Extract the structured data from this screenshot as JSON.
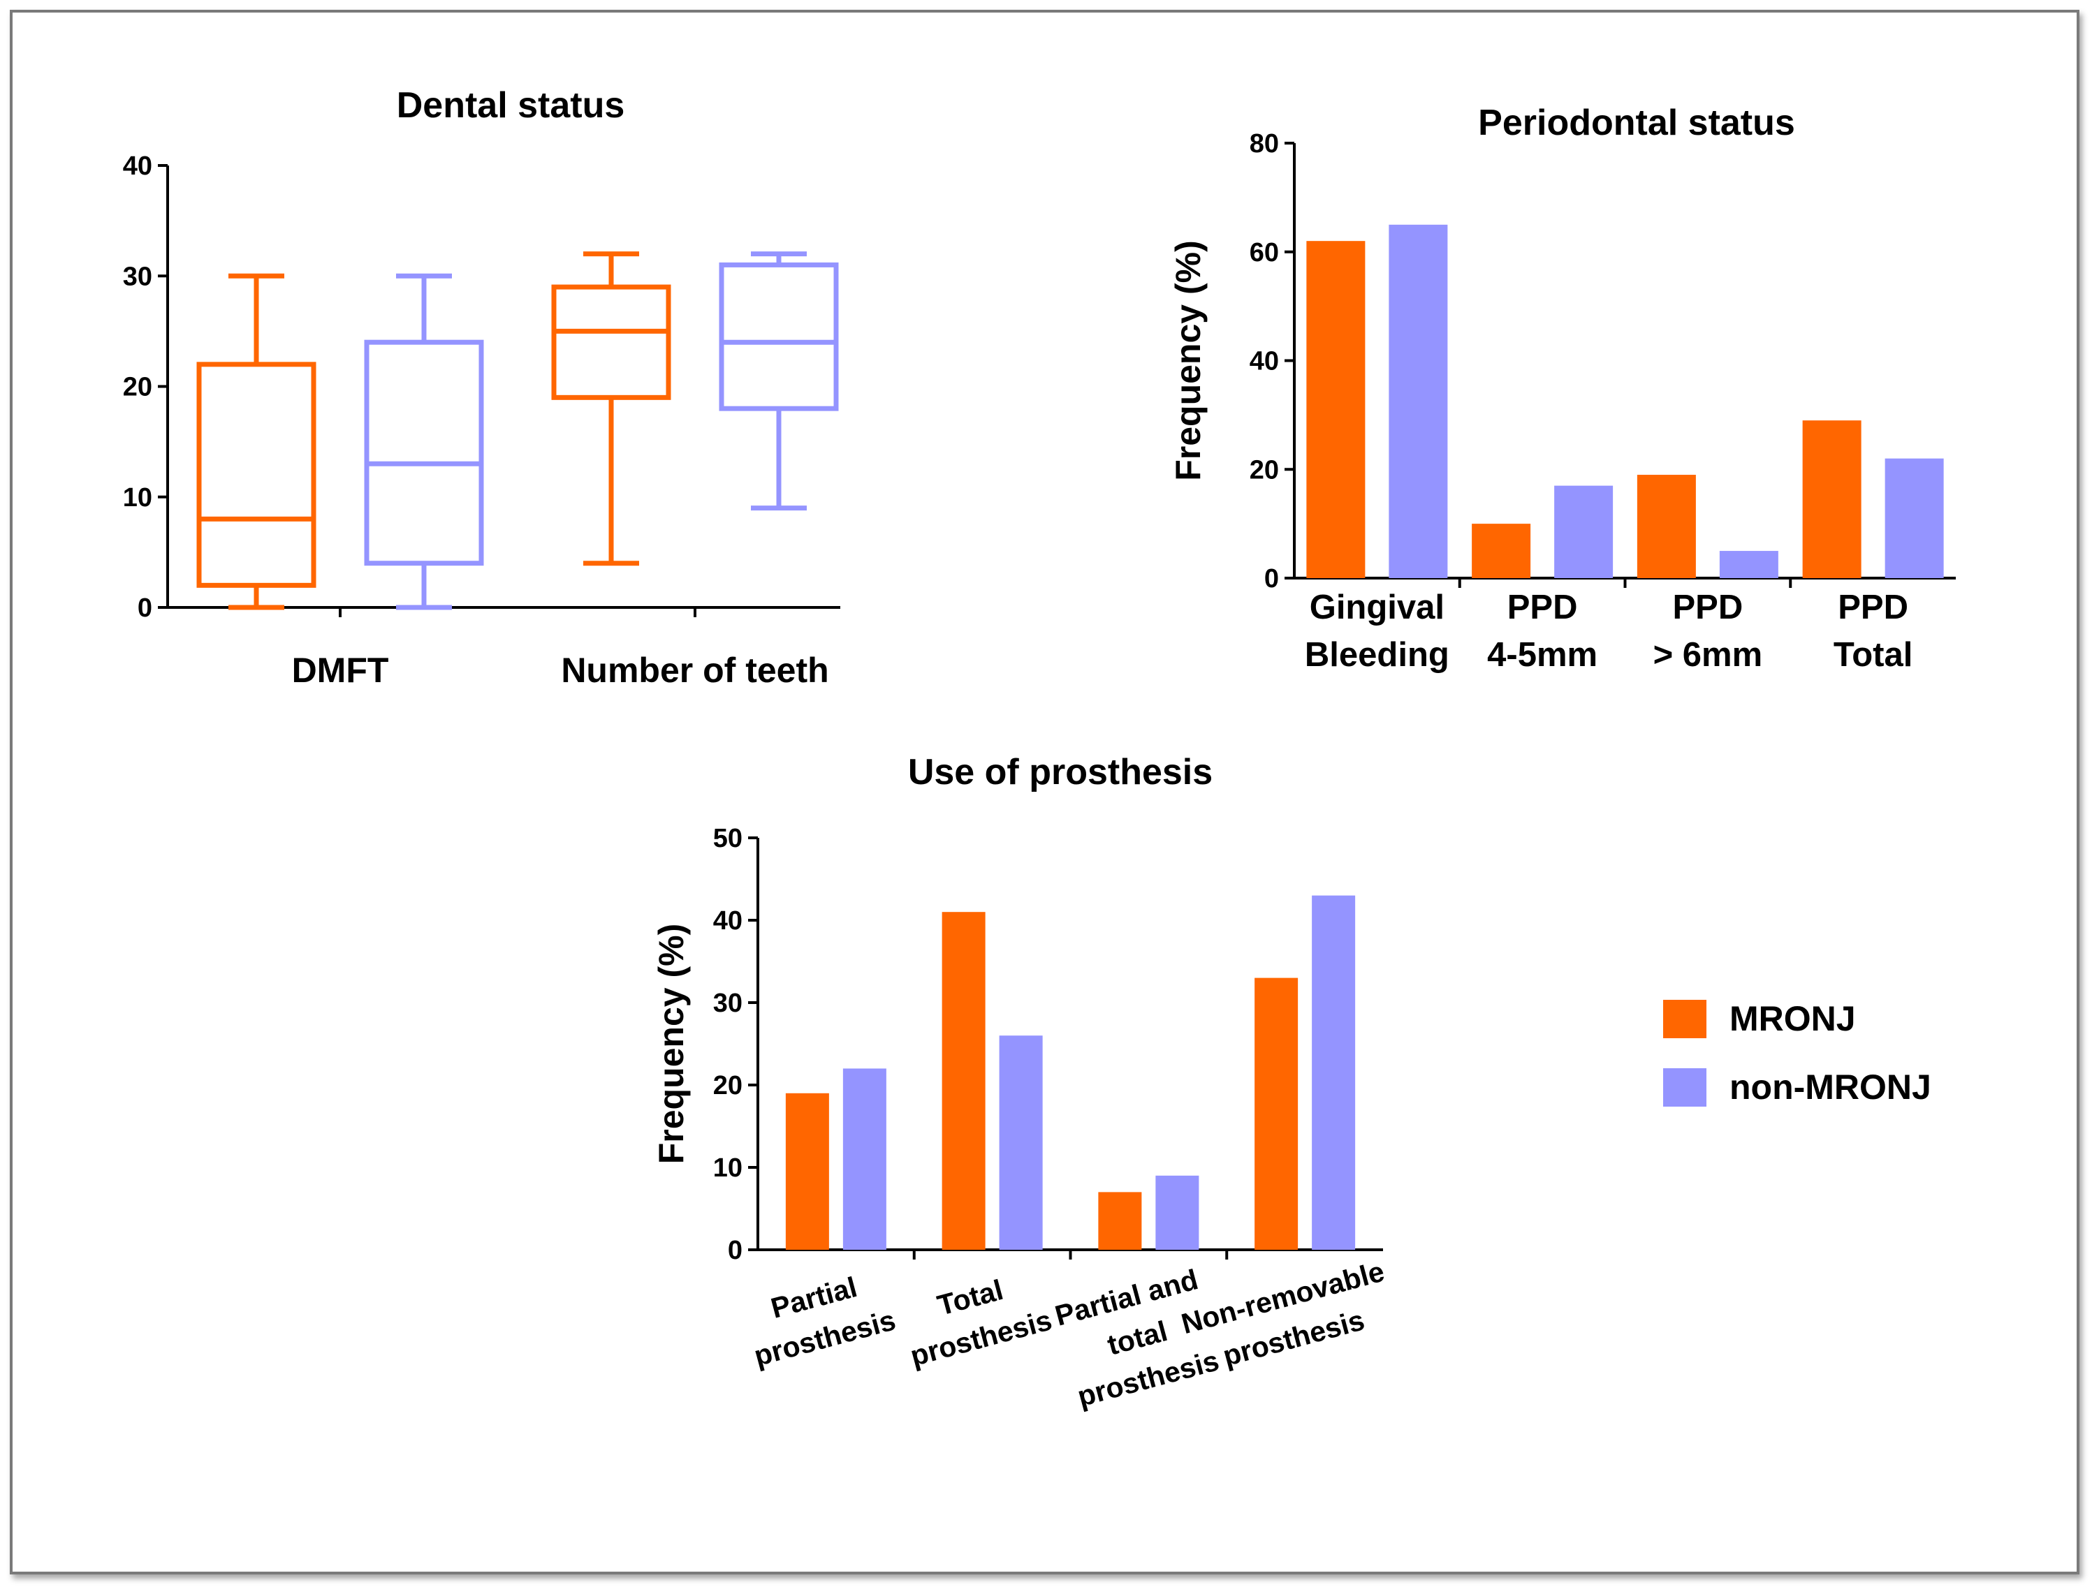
{
  "legend": {
    "items": [
      {
        "label": "MRONJ",
        "color": "#ff6600"
      },
      {
        "label": "non-MRONJ",
        "color": "#9494ff"
      }
    ]
  },
  "chart_data": [
    {
      "id": "dental",
      "type": "boxplot",
      "title": "Dental status",
      "xlabel": "",
      "ylabel": "",
      "ylim": [
        0,
        40
      ],
      "yticks": [
        0,
        10,
        20,
        30,
        40
      ],
      "groups": [
        "DMFT",
        "Number of teeth"
      ],
      "boxes": [
        {
          "group": "DMFT",
          "series": "MRONJ",
          "min": 0,
          "q1": 2,
          "median": 8,
          "q3": 22,
          "max": 30
        },
        {
          "group": "DMFT",
          "series": "non-MRONJ",
          "min": 0,
          "q1": 4,
          "median": 13,
          "q3": 24,
          "max": 30
        },
        {
          "group": "Number of teeth",
          "series": "MRONJ",
          "min": 4,
          "q1": 19,
          "median": 25,
          "q3": 29,
          "max": 32
        },
        {
          "group": "Number of teeth",
          "series": "non-MRONJ",
          "min": 9,
          "q1": 18,
          "median": 24,
          "q3": 31,
          "max": 32
        }
      ]
    },
    {
      "id": "periodontal",
      "type": "bar",
      "title": "Periodontal status",
      "ylabel": "Frequency (%)",
      "ylim": [
        0,
        80
      ],
      "yticks": [
        0,
        20,
        40,
        60,
        80
      ],
      "categories": [
        [
          "Gingival",
          "Bleeding"
        ],
        [
          "PPD",
          "4-5mm"
        ],
        [
          "PPD",
          "> 6mm"
        ],
        [
          "PPD",
          "Total"
        ]
      ],
      "series": [
        {
          "name": "MRONJ",
          "values": [
            62,
            10,
            19,
            29
          ]
        },
        {
          "name": "non-MRONJ",
          "values": [
            65,
            17,
            5,
            22
          ]
        }
      ]
    },
    {
      "id": "prosthesis",
      "type": "bar",
      "title": "Use of prosthesis",
      "ylabel": "Frequency (%)",
      "ylim": [
        0,
        50
      ],
      "yticks": [
        0,
        10,
        20,
        30,
        40,
        50
      ],
      "categories": [
        [
          "Partial",
          "prosthesis"
        ],
        [
          "Total",
          "prosthesis"
        ],
        [
          "Partial and",
          "total",
          "prosthesis"
        ],
        [
          "Non-removable",
          "prosthesis"
        ]
      ],
      "series": [
        {
          "name": "MRONJ",
          "values": [
            19,
            41,
            7,
            33
          ]
        },
        {
          "name": "non-MRONJ",
          "values": [
            22,
            26,
            9,
            43
          ]
        }
      ]
    }
  ]
}
